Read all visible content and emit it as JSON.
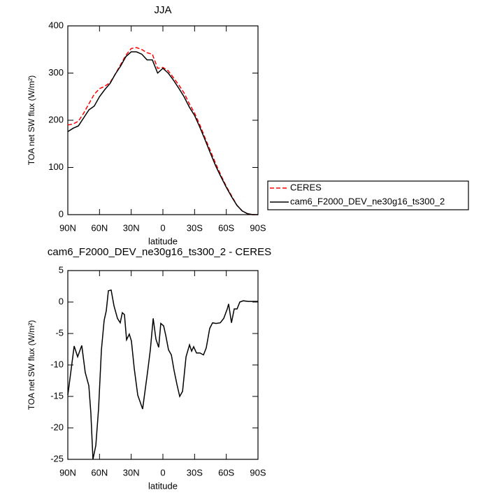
{
  "chart_data": [
    {
      "type": "line",
      "title": "JJA",
      "xlabel": "latitude",
      "ylabel": "TOA net SW flux (W/m²)",
      "x": [
        90,
        85,
        80,
        75,
        70,
        65,
        60,
        55,
        50,
        45,
        40,
        35,
        30,
        25,
        20,
        15,
        10,
        5,
        0,
        -5,
        -10,
        -15,
        -20,
        -25,
        -30,
        -35,
        -40,
        -45,
        -50,
        -55,
        -60,
        -65,
        -70,
        -75,
        -80,
        -85,
        -90
      ],
      "series": [
        {
          "name": "CERES",
          "color": "#ff0000",
          "dash": true,
          "values": [
            190,
            192,
            198,
            215,
            235,
            255,
            267,
            272,
            280,
            298,
            318,
            338,
            352,
            354,
            350,
            343,
            340,
            310,
            312,
            305,
            290,
            275,
            258,
            235,
            215,
            190,
            162,
            135,
            108,
            83,
            60,
            40,
            20,
            8,
            2,
            0,
            0
          ]
        },
        {
          "name": "cam6_F2000_DEV_ne30g16_ts300_2",
          "color": "#000000",
          "dash": false,
          "values": [
            176,
            183,
            188,
            205,
            222,
            230,
            250,
            265,
            278,
            298,
            315,
            335,
            345,
            345,
            340,
            328,
            328,
            300,
            310,
            300,
            285,
            268,
            250,
            228,
            210,
            185,
            158,
            130,
            103,
            80,
            58,
            38,
            20,
            8,
            2,
            0,
            0
          ]
        }
      ],
      "xlim": [
        90,
        -90
      ],
      "xticks": [
        {
          "value": 90,
          "label": "90N"
        },
        {
          "value": 60,
          "label": "60N"
        },
        {
          "value": 30,
          "label": "30N"
        },
        0,
        {
          "value": -30,
          "label": "30S"
        },
        {
          "value": -60,
          "label": "60S"
        },
        {
          "value": -90,
          "label": "90S"
        }
      ],
      "ylim": [
        0,
        400
      ],
      "yticks": [
        0,
        100,
        200,
        300,
        400
      ],
      "legend": "right"
    },
    {
      "type": "line",
      "title": "cam6_F2000_DEV_ne30g16_ts300_2 - CERES",
      "xlabel": "latitude",
      "ylabel": "TOA net SW flux (W/m²)",
      "x": [
        90,
        84,
        80.7,
        76.8,
        73.5,
        70.1,
        68.2,
        66.2,
        63.5,
        60.9,
        58.2,
        55.6,
        53.6,
        51.6,
        49,
        46.3,
        43,
        40.4,
        38.4,
        36.4,
        34.4,
        31.8,
        29.8,
        27.1,
        23.8,
        19.2,
        14.5,
        11.9,
        9.2,
        6.6,
        4,
        2,
        -0.7,
        -2.7,
        -5.3,
        -8,
        -10.6,
        -13.3,
        -15.9,
        -18.6,
        -21.9,
        -25.2,
        -27.2,
        -29.1,
        -31.8,
        -35.1,
        -38.4,
        -41,
        -44.3,
        -47,
        -50.3,
        -54.3,
        -57.6,
        -60.9,
        -62.2,
        -64.9,
        -67.5,
        -70.2,
        -72.8,
        -76.1,
        -80.7,
        -90
      ],
      "values": [
        -14.8,
        -7,
        -8.7,
        -6.9,
        -11.2,
        -13.3,
        -17.6,
        -25,
        -22.8,
        -17,
        -7.6,
        -2.9,
        -1.4,
        1.8,
        1.9,
        -0.6,
        -2.6,
        -3.3,
        -1.7,
        -2,
        -6,
        -5.1,
        -6.2,
        -10.6,
        -14.8,
        -17,
        -11.1,
        -7.6,
        -2.6,
        -5.9,
        -7.2,
        -3.4,
        -3.8,
        -5.3,
        -7.6,
        -8.4,
        -10.9,
        -13.1,
        -15,
        -14.2,
        -8.7,
        -6.8,
        -7.8,
        -7.1,
        -8.1,
        -8.1,
        -8.4,
        -7.3,
        -4.2,
        -3.3,
        -3.4,
        -3.3,
        -2.6,
        -1.1,
        -0.3,
        -3.3,
        -1.1,
        -1.1,
        0,
        0.2,
        0.1,
        0.1
      ],
      "color": "#000000",
      "xlim": [
        90,
        -90
      ],
      "xticks": [
        {
          "value": 90,
          "label": "90N"
        },
        {
          "value": 60,
          "label": "60N"
        },
        {
          "value": 30,
          "label": "30N"
        },
        0,
        {
          "value": -30,
          "label": "30S"
        },
        {
          "value": -60,
          "label": "60S"
        },
        {
          "value": -90,
          "label": "90S"
        }
      ],
      "ylim": [
        -25,
        5
      ],
      "yticks": [
        5,
        0,
        -5,
        -10,
        -15,
        -20,
        -25
      ]
    }
  ]
}
